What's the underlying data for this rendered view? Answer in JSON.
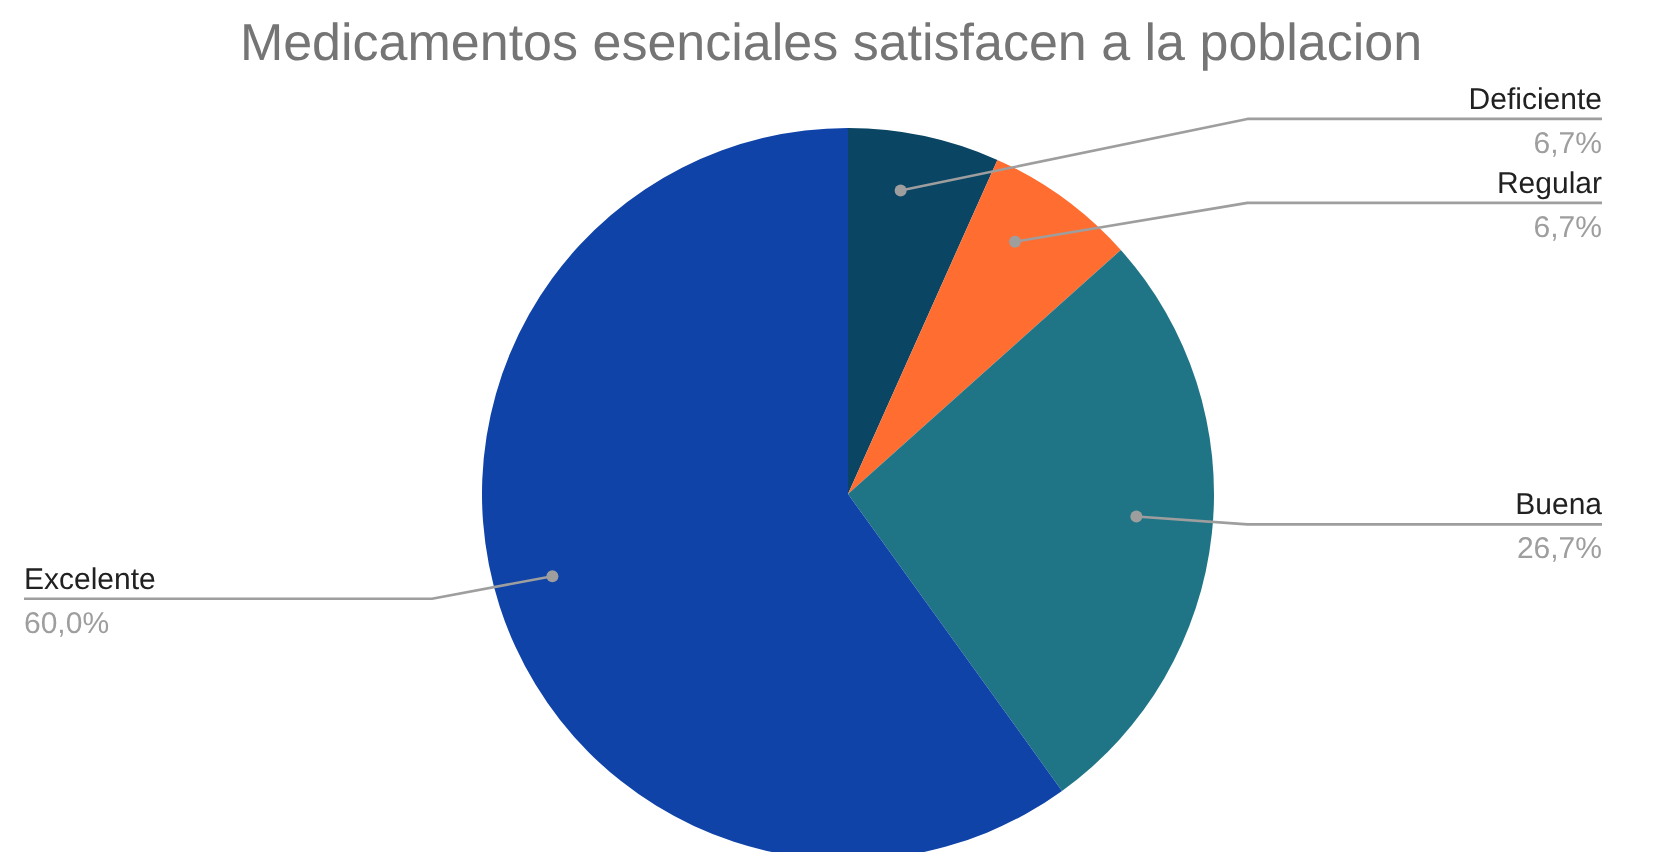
{
  "chart_data": {
    "type": "pie",
    "title": "Medicamentos esenciales satisfacen a la poblacion",
    "categories": [
      "Deficiente",
      "Regular",
      "Buena",
      "Excelente"
    ],
    "values": [
      6.7,
      6.7,
      26.7,
      60.0
    ],
    "colors": [
      "#0a4564",
      "#ff6d31",
      "#1f7585",
      "#0f43a8"
    ],
    "value_labels": [
      "6,7%",
      "6,7%",
      "26,7%",
      "60,0%"
    ]
  }
}
